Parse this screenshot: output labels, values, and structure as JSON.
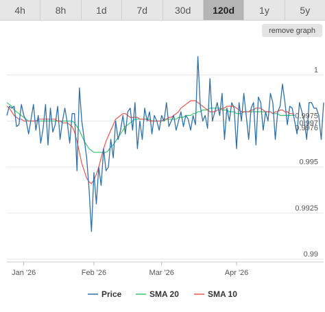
{
  "tabs": [
    {
      "label": "4h",
      "active": false
    },
    {
      "label": "8h",
      "active": false
    },
    {
      "label": "1d",
      "active": false
    },
    {
      "label": "7d",
      "active": false
    },
    {
      "label": "30d",
      "active": false
    },
    {
      "label": "120d",
      "active": true
    },
    {
      "label": "1y",
      "active": false
    },
    {
      "label": "5y",
      "active": false
    }
  ],
  "remove_graph_label": "remove graph",
  "chart_data": {
    "type": "line",
    "ylim": [
      0.99,
      1.0015
    ],
    "y_ticks": [
      {
        "value": 1.0,
        "label": "1"
      },
      {
        "value": 0.9975,
        "label": "0.9975"
      },
      {
        "value": 0.995,
        "label": "0.995"
      },
      {
        "value": 0.9925,
        "label": "0.9925"
      },
      {
        "value": 0.99,
        "label": "0.99"
      }
    ],
    "x_ticks": [
      {
        "index": 7,
        "label": "Jan '26"
      },
      {
        "index": 36,
        "label": "Feb '26"
      },
      {
        "index": 64,
        "label": "Mar '26"
      },
      {
        "index": 95,
        "label": "Apr '26"
      }
    ],
    "current_value_labels": [
      "0.997",
      "0.9976"
    ],
    "grid": true,
    "legend_position": "bottom",
    "series": [
      {
        "name": "Price",
        "color": "#2f6fa8",
        "values": [
          0.9978,
          0.9983,
          0.9982,
          0.9983,
          0.9972,
          0.9973,
          0.9984,
          0.9978,
          0.9975,
          0.9968,
          0.9976,
          0.9984,
          0.997,
          0.9978,
          0.9963,
          0.9971,
          0.9984,
          0.9962,
          0.9982,
          0.9969,
          0.9973,
          0.9983,
          0.9965,
          0.9975,
          0.9982,
          0.9974,
          0.9963,
          0.9979,
          0.9979,
          0.9948,
          0.9993,
          0.9975,
          0.9965,
          0.9955,
          0.9938,
          0.9915,
          0.9947,
          0.993,
          0.995,
          0.994,
          0.996,
          0.9948,
          0.995,
          0.9965,
          0.9955,
          0.9975,
          0.9965,
          0.997,
          0.9978,
          0.9968,
          0.998,
          0.9982,
          0.997,
          0.9985,
          0.996,
          0.9975,
          0.9965,
          0.9982,
          0.9975,
          0.998,
          0.9968,
          0.9978,
          0.9975,
          0.997,
          0.9978,
          0.9975,
          0.9985,
          0.9972,
          0.9975,
          0.9978,
          0.997,
          0.9975,
          0.998,
          0.9972,
          0.9978,
          0.9976,
          0.997,
          0.9978,
          0.9973,
          1.001,
          0.9983,
          0.9975,
          0.9978,
          0.9971,
          0.9998,
          0.9975,
          0.998,
          0.9985,
          0.9978,
          0.999,
          0.9965,
          0.9982,
          0.9975,
          0.9985,
          0.9982,
          0.996,
          0.9985,
          0.9975,
          0.999,
          0.9978,
          0.9965,
          0.9982,
          0.9985,
          0.9962,
          0.9988,
          0.9985,
          0.997,
          0.998,
          0.9975,
          0.999,
          0.9985,
          0.9965,
          0.998,
          0.9983,
          0.9995,
          0.9985,
          0.9973,
          0.9983,
          0.9982,
          0.9975,
          0.9968,
          0.9985,
          0.998,
          0.9975,
          0.9965,
          0.9985,
          0.9985,
          0.9982,
          0.9982,
          0.9978,
          0.9965,
          0.9985
        ]
      },
      {
        "name": "SMA 20",
        "color": "#39c46f",
        "values": [
          0.9985,
          0.9984,
          0.9983,
          0.9981,
          0.998,
          0.9979,
          0.9978,
          0.9977,
          0.9976,
          0.9975,
          0.9975,
          0.9975,
          0.9975,
          0.9975,
          0.9975,
          0.9975,
          0.9975,
          0.9975,
          0.9975,
          0.9975,
          0.9975,
          0.9975,
          0.9975,
          0.9975,
          0.9975,
          0.9975,
          0.9975,
          0.9975,
          0.9974,
          0.9972,
          0.997,
          0.9967,
          0.9964,
          0.9962,
          0.996,
          0.9959,
          0.9958,
          0.9958,
          0.9958,
          0.9958,
          0.9958,
          0.9958,
          0.9959,
          0.9961,
          0.9962,
          0.9964,
          0.9966,
          0.9968,
          0.997,
          0.9972,
          0.9973,
          0.9974,
          0.9975,
          0.9976,
          0.9976,
          0.9976,
          0.9976,
          0.9976,
          0.9976,
          0.9976,
          0.9975,
          0.9975,
          0.9975,
          0.9975,
          0.9975,
          0.9975,
          0.9976,
          0.9976,
          0.9976,
          0.9976,
          0.9976,
          0.9977,
          0.9977,
          0.9977,
          0.9978,
          0.9978,
          0.9978,
          0.9979,
          0.9979,
          0.998,
          0.998,
          0.9981,
          0.9981,
          0.9981,
          0.9982,
          0.9982,
          0.9982,
          0.9982,
          0.9982,
          0.9981,
          0.9981,
          0.9981,
          0.998,
          0.998,
          0.998,
          0.9979,
          0.9979,
          0.9979,
          0.998,
          0.998,
          0.998,
          0.998,
          0.998,
          0.998,
          0.998,
          0.998,
          0.998,
          0.998,
          0.998,
          0.998,
          0.9979,
          0.9979,
          0.9979,
          0.9978,
          0.9978,
          0.9978,
          0.9978,
          0.9978,
          0.9978,
          0.9978
        ]
      },
      {
        "name": "SMA 10",
        "color": "#e8554e",
        "values": [
          0.9983,
          0.9982,
          0.998,
          0.9978,
          0.9977,
          0.9976,
          0.9976,
          0.9975,
          0.9975,
          0.9975,
          0.9975,
          0.9975,
          0.9975,
          0.9976,
          0.9976,
          0.9976,
          0.9976,
          0.9976,
          0.9976,
          0.9976,
          0.9976,
          0.9975,
          0.9975,
          0.9974,
          0.9974,
          0.9974,
          0.9973,
          0.9972,
          0.9969,
          0.9964,
          0.9958,
          0.9952,
          0.9948,
          0.9944,
          0.9942,
          0.9941,
          0.9943,
          0.9946,
          0.995,
          0.9955,
          0.996,
          0.9964,
          0.9967,
          0.997,
          0.9973,
          0.9976,
          0.9977,
          0.9978,
          0.9979,
          0.9979,
          0.9978,
          0.9977,
          0.9977,
          0.9977,
          0.9977,
          0.9976,
          0.9976,
          0.9976,
          0.9976,
          0.9975,
          0.9975,
          0.9975,
          0.9975,
          0.9975,
          0.9975,
          0.9976,
          0.9976,
          0.9977,
          0.9977,
          0.9978,
          0.9979,
          0.998,
          0.9982,
          0.9983,
          0.9984,
          0.9985,
          0.9986,
          0.9986,
          0.9986,
          0.9985,
          0.9984,
          0.9983,
          0.9982,
          0.9981,
          0.998,
          0.998,
          0.998,
          0.9981,
          0.9981,
          0.9982,
          0.9982,
          0.9983,
          0.9983,
          0.9983,
          0.9983,
          0.9982,
          0.9981,
          0.998,
          0.998,
          0.998,
          0.998,
          0.9981,
          0.9981,
          0.9982,
          0.9982,
          0.9982,
          0.9981,
          0.998,
          0.998,
          0.998,
          0.9979,
          0.998,
          0.998,
          0.9981,
          0.9981,
          0.998,
          0.998,
          0.9979,
          0.9979,
          0.9978
        ]
      }
    ]
  }
}
